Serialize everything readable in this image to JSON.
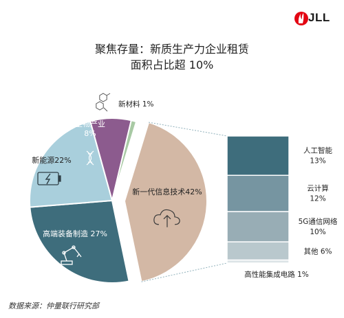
{
  "header": {
    "logo_text": "JLL",
    "title_line1": "聚焦存量：新质生产力企业租赁",
    "title_line2": "面积占比超 10%"
  },
  "footer": {
    "source": "数据来源：仲量联行研究部"
  },
  "colors": {
    "new_energy": "#a9cfdc",
    "high_end_equipment": "#3e6d7c",
    "bio": "#8c5b8e",
    "new_materials": "#a8c9a4",
    "it": "#d3b8a5",
    "ai": "#3e6d7c",
    "cloud": "#7695a1",
    "g5": "#98adb5",
    "other": "#b9c8cd",
    "ic": "#dde4e7"
  },
  "chart_data": {
    "type": "pie",
    "title": "聚焦存量：新质生产力企业租赁面积占比超 10%",
    "slices": [
      {
        "key": "it",
        "label": "新一代信息技术",
        "value": 42,
        "display": "新一代信息技术42%",
        "icon": "cloud-upload-icon"
      },
      {
        "key": "high_end_equipment",
        "label": "高端装备制造",
        "value": 27,
        "display": "高端装备制造 27%",
        "icon": "robot-arm-icon"
      },
      {
        "key": "new_energy",
        "label": "新能源",
        "value": 22,
        "display": "新能源22%",
        "icon": "battery-charge-icon"
      },
      {
        "key": "bio",
        "label": "生物产业",
        "value": 8,
        "display_line1": "生物产业",
        "display_line2": "8%",
        "icon": "dna-icon"
      },
      {
        "key": "new_materials",
        "label": "新材料",
        "value": 1,
        "display": "新材料 1%",
        "icon": "molecule-icon"
      }
    ],
    "breakdown": {
      "parent": "新一代信息技术",
      "items": [
        {
          "key": "ai",
          "label": "人工智能",
          "value": 13,
          "value_label": "13%"
        },
        {
          "key": "cloud",
          "label": "云计算",
          "value": 12,
          "value_label": "12%"
        },
        {
          "key": "g5",
          "label": "5G通信网络",
          "value": 10,
          "value_label": "10%"
        },
        {
          "key": "other",
          "label": "其他",
          "value": 6,
          "value_label": "6%",
          "inline": true
        },
        {
          "key": "ic",
          "label": "高性能集成电路",
          "value": 1,
          "value_label": "1%",
          "inline": true
        }
      ]
    }
  }
}
